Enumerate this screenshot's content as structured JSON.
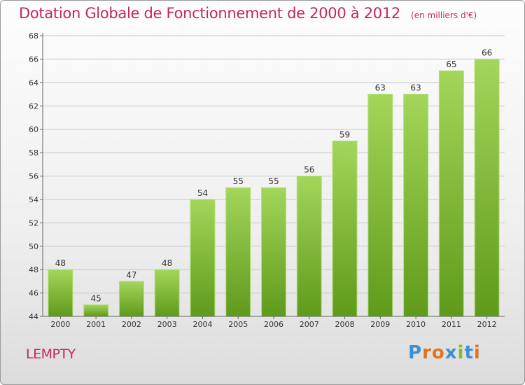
{
  "title": "Dotation Globale de Fonctionnement de 2000 à 2012",
  "unit": "(en milliers d'€)",
  "commune": "LEMPTY",
  "logo": {
    "letters": [
      "P",
      "r",
      "o",
      "x",
      "i",
      "t",
      "i"
    ],
    "colors": [
      "#3a8fd6",
      "#e0741f",
      "#e0741f",
      "#3a8fd6",
      "#7fbf2a",
      "#3a8fd6",
      "#e0741f"
    ]
  },
  "colors": {
    "bar_light": "#a3d65a",
    "bar_dark": "#5f9a1b",
    "title": "#c4275c",
    "grid": "#c8c8c8"
  },
  "chart_data": {
    "type": "bar",
    "title": "Dotation Globale de Fonctionnement de 2000 à 2012",
    "categories": [
      "2000",
      "2001",
      "2002",
      "2003",
      "2004",
      "2005",
      "2006",
      "2007",
      "2008",
      "2009",
      "2010",
      "2011",
      "2012"
    ],
    "values": [
      48,
      45,
      47,
      48,
      54,
      55,
      55,
      56,
      59,
      63,
      63,
      65,
      66
    ],
    "ylim": [
      44,
      68
    ],
    "yticks": [
      44,
      46,
      48,
      50,
      52,
      54,
      56,
      58,
      60,
      62,
      64,
      66,
      68
    ],
    "grid": true
  }
}
